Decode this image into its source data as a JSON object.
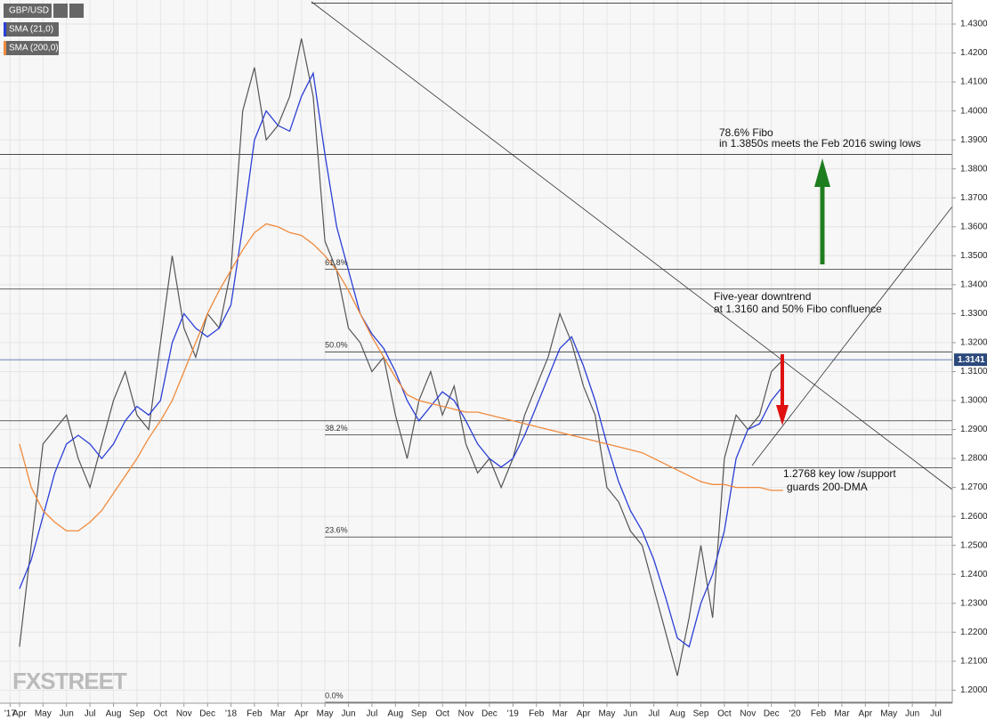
{
  "chart_data": {
    "type": "line",
    "legend": [
      "GBP/USD",
      "SMA (21,0)",
      "SMA (200,0)"
    ],
    "watermark": "FXSTREET",
    "xlim": [
      2.17,
      42.7
    ],
    "ylim": [
      1.1955,
      1.4383
    ],
    "grid": true,
    "xticks": [
      {
        "value": 2.6,
        "label": "'17"
      },
      {
        "value": 3,
        "label": "Apr"
      },
      {
        "value": 4,
        "label": "May"
      },
      {
        "value": 5,
        "label": "Jun"
      },
      {
        "value": 6,
        "label": "Jul"
      },
      {
        "value": 7,
        "label": "Aug"
      },
      {
        "value": 8,
        "label": "Sep"
      },
      {
        "value": 9,
        "label": "Oct"
      },
      {
        "value": 10,
        "label": "Nov"
      },
      {
        "value": 11,
        "label": "Dec"
      },
      {
        "value": 12,
        "label": "'18"
      },
      {
        "value": 13,
        "label": "Feb"
      },
      {
        "value": 14,
        "label": "Mar"
      },
      {
        "value": 15,
        "label": "Apr"
      },
      {
        "value": 16,
        "label": "May"
      },
      {
        "value": 17,
        "label": "Jun"
      },
      {
        "value": 18,
        "label": "Jul"
      },
      {
        "value": 19,
        "label": "Aug"
      },
      {
        "value": 20,
        "label": "Sep"
      },
      {
        "value": 21,
        "label": "Oct"
      },
      {
        "value": 22,
        "label": "Nov"
      },
      {
        "value": 23,
        "label": "Dec"
      },
      {
        "value": 24,
        "label": "'19"
      },
      {
        "value": 25,
        "label": "Feb"
      },
      {
        "value": 26,
        "label": "Mar"
      },
      {
        "value": 27,
        "label": "Apr"
      },
      {
        "value": 28,
        "label": "May"
      },
      {
        "value": 29,
        "label": "Jun"
      },
      {
        "value": 30,
        "label": "Jul"
      },
      {
        "value": 31,
        "label": "Aug"
      },
      {
        "value": 32,
        "label": "Sep"
      },
      {
        "value": 33,
        "label": "Oct"
      },
      {
        "value": 34,
        "label": "Nov"
      },
      {
        "value": 35,
        "label": "Dec"
      },
      {
        "value": 36,
        "label": "'20"
      },
      {
        "value": 37,
        "label": "Feb"
      },
      {
        "value": 38,
        "label": "Mar"
      },
      {
        "value": 39,
        "label": "Apr"
      },
      {
        "value": 40,
        "label": "May"
      },
      {
        "value": 41,
        "label": "Jun"
      },
      {
        "value": 42,
        "label": "Jul"
      }
    ],
    "yticks": [
      {
        "value": 1.2,
        "label": "1.2000"
      },
      {
        "value": 1.21,
        "label": "1.2100"
      },
      {
        "value": 1.22,
        "label": "1.2200"
      },
      {
        "value": 1.23,
        "label": "1.2300"
      },
      {
        "value": 1.24,
        "label": "1.2400"
      },
      {
        "value": 1.25,
        "label": "1.2500"
      },
      {
        "value": 1.26,
        "label": "1.2600"
      },
      {
        "value": 1.27,
        "label": "1.2700"
      },
      {
        "value": 1.28,
        "label": "1.2800"
      },
      {
        "value": 1.29,
        "label": "1.2900"
      },
      {
        "value": 1.3,
        "label": "1.3000"
      },
      {
        "value": 1.31,
        "label": "1.3100"
      },
      {
        "value": 1.32,
        "label": "1.3200"
      },
      {
        "value": 1.33,
        "label": "1.3300"
      },
      {
        "value": 1.34,
        "label": "1.3400"
      },
      {
        "value": 1.35,
        "label": "1.3500"
      },
      {
        "value": 1.36,
        "label": "1.3600"
      },
      {
        "value": 1.37,
        "label": "1.3700"
      },
      {
        "value": 1.38,
        "label": "1.3800"
      },
      {
        "value": 1.39,
        "label": "1.3900"
      },
      {
        "value": 1.4,
        "label": "1.4000"
      },
      {
        "value": 1.41,
        "label": "1.4100"
      },
      {
        "value": 1.42,
        "label": "1.4200"
      },
      {
        "value": 1.43,
        "label": "1.4300"
      }
    ],
    "x": [
      3,
      3.5,
      4,
      4.5,
      5,
      5.5,
      6,
      6.5,
      7,
      7.5,
      8,
      8.5,
      9,
      9.5,
      10,
      10.5,
      11,
      11.5,
      12,
      12.5,
      13,
      13.5,
      14,
      14.5,
      15,
      15.5,
      16,
      16.5,
      17,
      17.5,
      18,
      18.5,
      19,
      19.5,
      20,
      20.5,
      21,
      21.5,
      22,
      22.5,
      23,
      23.5,
      24,
      24.5,
      25,
      25.5,
      26,
      26.5,
      27,
      27.5,
      28,
      28.5,
      29,
      29.5,
      30,
      30.5,
      31,
      31.5,
      32,
      32.5,
      33,
      33.5,
      34,
      34.5,
      35,
      35.5
    ],
    "series": [
      {
        "name": "GBP/USD",
        "color": "#555555",
        "values": [
          1.215,
          1.25,
          1.285,
          1.29,
          1.295,
          1.28,
          1.27,
          1.285,
          1.3,
          1.31,
          1.295,
          1.29,
          1.32,
          1.35,
          1.325,
          1.315,
          1.33,
          1.325,
          1.345,
          1.4,
          1.415,
          1.39,
          1.395,
          1.405,
          1.425,
          1.405,
          1.355,
          1.345,
          1.325,
          1.32,
          1.31,
          1.315,
          1.295,
          1.28,
          1.3,
          1.31,
          1.295,
          1.305,
          1.285,
          1.275,
          1.28,
          1.27,
          1.28,
          1.295,
          1.305,
          1.315,
          1.33,
          1.32,
          1.305,
          1.295,
          1.27,
          1.265,
          1.255,
          1.25,
          1.235,
          1.22,
          1.205,
          1.225,
          1.25,
          1.225,
          1.28,
          1.295,
          1.29,
          1.295,
          1.31,
          1.3141
        ]
      },
      {
        "name": "SMA (21,0)",
        "color": "#2b3fd6",
        "values": [
          1.235,
          1.245,
          1.26,
          1.275,
          1.285,
          1.288,
          1.285,
          1.28,
          1.285,
          1.293,
          1.298,
          1.295,
          1.3,
          1.32,
          1.33,
          1.325,
          1.322,
          1.325,
          1.333,
          1.36,
          1.39,
          1.4,
          1.395,
          1.393,
          1.405,
          1.413,
          1.385,
          1.36,
          1.345,
          1.33,
          1.323,
          1.318,
          1.31,
          1.3,
          1.293,
          1.298,
          1.303,
          1.3,
          1.293,
          1.285,
          1.28,
          1.277,
          1.28,
          1.288,
          1.298,
          1.308,
          1.318,
          1.322,
          1.312,
          1.3,
          1.285,
          1.272,
          1.262,
          1.255,
          1.245,
          1.232,
          1.218,
          1.215,
          1.23,
          1.24,
          1.255,
          1.28,
          1.29,
          1.292,
          1.3,
          1.305
        ]
      },
      {
        "name": "SMA (200,0)",
        "color": "#f08a3c",
        "values": [
          1.285,
          1.27,
          1.262,
          1.258,
          1.255,
          1.255,
          1.258,
          1.262,
          1.268,
          1.274,
          1.28,
          1.287,
          1.293,
          1.3,
          1.31,
          1.32,
          1.33,
          1.338,
          1.345,
          1.352,
          1.358,
          1.361,
          1.36,
          1.358,
          1.357,
          1.354,
          1.35,
          1.345,
          1.338,
          1.33,
          1.322,
          1.315,
          1.308,
          1.302,
          1.3,
          1.299,
          1.298,
          1.297,
          1.296,
          1.296,
          1.295,
          1.294,
          1.293,
          1.292,
          1.291,
          1.29,
          1.289,
          1.288,
          1.287,
          1.286,
          1.285,
          1.284,
          1.283,
          1.282,
          1.28,
          1.278,
          1.276,
          1.274,
          1.272,
          1.271,
          1.271,
          1.27,
          1.27,
          1.27,
          1.269,
          1.269
        ]
      }
    ],
    "levels": [
      1.4372,
      1.385,
      1.3385,
      1.293,
      1.2768
    ],
    "fibo": {
      "labels": [
        "61.8%",
        "50.0%",
        "38.2%",
        "23.6%",
        "0.0%"
      ],
      "values": [
        1.3453,
        1.3168,
        1.2882,
        1.2529,
        1.1958
      ]
    },
    "last_price": {
      "value": 1.3141,
      "label": "1.3141"
    },
    "annotations": [
      "78.6% Fibo",
      "in 1.3850s meets the Feb 2016 swing lows",
      "Five-year downtrend",
      "at 1.3160 and 50% Fibo confluence",
      "1.2768 key low /support",
      "guards 200-DMA"
    ]
  }
}
